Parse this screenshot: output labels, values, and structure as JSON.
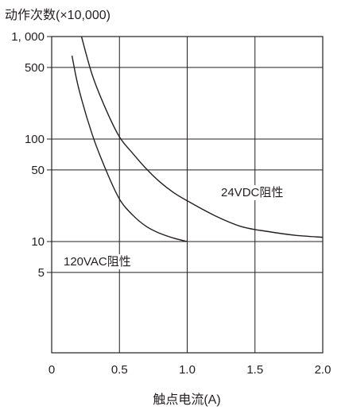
{
  "chart_data": {
    "type": "line",
    "ylabel": "动作次数(×10,000)",
    "xlabel": "触点电流(A)",
    "xlim": [
      0,
      2.0
    ],
    "x_ticks": [
      {
        "value": 0,
        "label": "0"
      },
      {
        "value": 0.5,
        "label": "0.5"
      },
      {
        "value": 1.0,
        "label": "1.0"
      },
      {
        "value": 1.5,
        "label": "1.5"
      },
      {
        "value": 2.0,
        "label": "2.0"
      }
    ],
    "y_scale": "log",
    "y_ticks": [
      {
        "value": 1000,
        "label": "1, 000"
      },
      {
        "value": 500,
        "label": "500"
      },
      {
        "value": 100,
        "label": "100"
      },
      {
        "value": 50,
        "label": "50"
      },
      {
        "value": 10,
        "label": "10"
      },
      {
        "value": 5,
        "label": "5"
      }
    ],
    "grid": true,
    "series": [
      {
        "name": "24VDC阻性",
        "x": [
          0.22,
          0.3,
          0.4,
          0.5,
          0.6,
          0.7,
          0.8,
          0.9,
          1.0,
          1.2,
          1.4,
          1.6,
          1.8,
          2.0
        ],
        "y": [
          1000,
          420,
          195,
          105,
          72,
          51,
          38,
          30,
          25,
          18,
          14,
          12.5,
          11.5,
          11
        ]
      },
      {
        "name": "120VAC阻性",
        "x": [
          0.15,
          0.2,
          0.3,
          0.4,
          0.5,
          0.6,
          0.7,
          0.8,
          0.9,
          1.0
        ],
        "y": [
          650,
          310,
          110,
          50,
          26,
          18,
          14,
          12,
          10.8,
          10
        ]
      }
    ]
  }
}
